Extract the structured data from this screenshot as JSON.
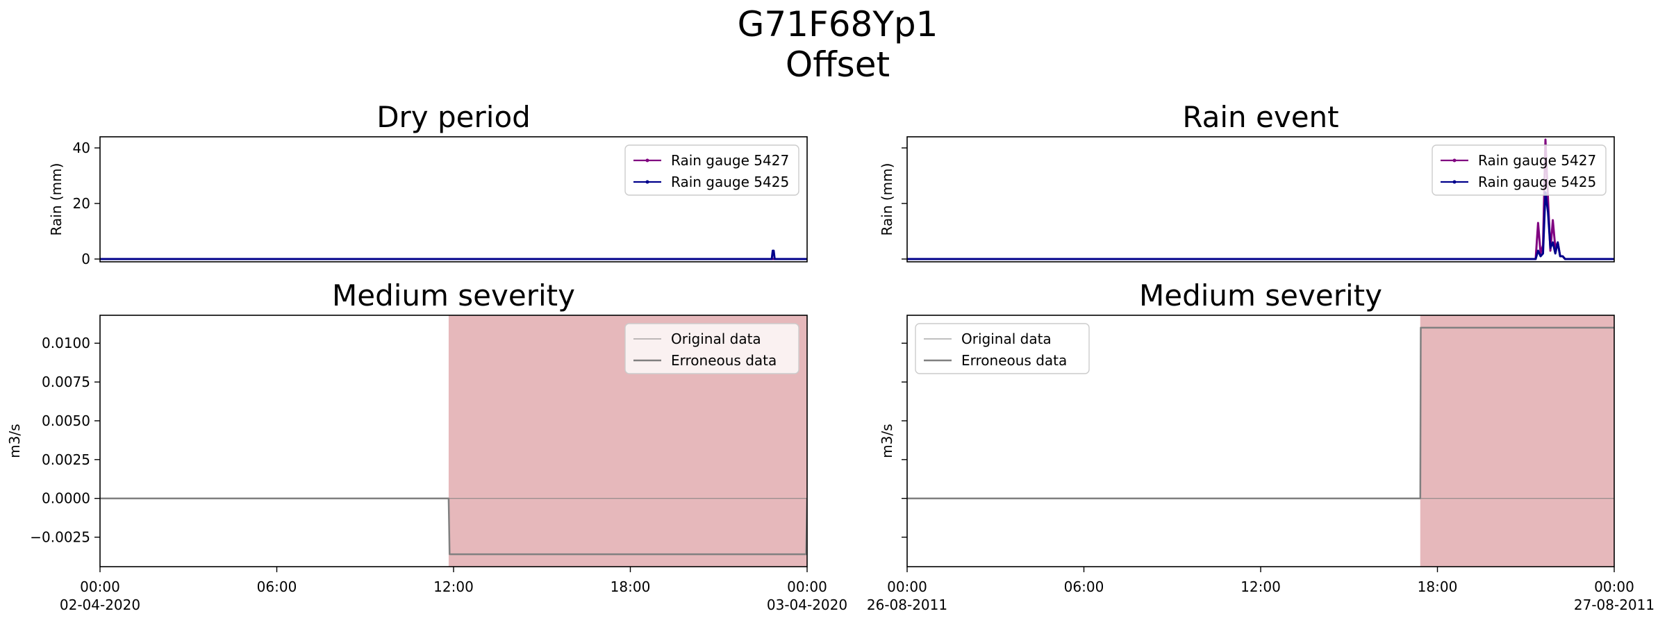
{
  "figure": {
    "title_line1": "G71F68Yp1",
    "title_line2": "Offset"
  },
  "chart_data": [
    {
      "id": "dry-rain",
      "type": "line",
      "title": "Dry period",
      "xlabel": "",
      "ylabel": "Rain (mm)",
      "xlim": [
        "2020-04-02 00:00",
        "2020-04-03 00:00"
      ],
      "ylim": [
        -1,
        44
      ],
      "yticks": [
        0,
        20,
        40
      ],
      "ytick_labels": [
        "0",
        "20",
        "40"
      ],
      "xticks": [],
      "legend": {
        "placement": "upper-right",
        "entries": [
          "Rain gauge 5427",
          "Rain gauge 5425"
        ]
      },
      "series": [
        {
          "name": "Rain gauge 5427",
          "color": "#800080",
          "x": [
            "2020-04-02 00:00",
            "2020-04-03 00:00"
          ],
          "y": [
            0,
            0
          ]
        },
        {
          "name": "Rain gauge 5425",
          "color": "#00008b",
          "x": [
            "2020-04-02 00:00",
            "2020-04-02 22:48",
            "2020-04-02 22:50",
            "2020-04-02 22:52",
            "2020-04-02 22:54",
            "2020-04-03 00:00"
          ],
          "y": [
            0,
            0,
            3,
            3,
            0,
            0
          ]
        }
      ]
    },
    {
      "id": "event-rain",
      "type": "line",
      "title": "Rain event",
      "xlabel": "",
      "ylabel": "Rain (mm)",
      "xlim": [
        "2011-08-26 00:00",
        "2011-08-27 00:00"
      ],
      "ylim": [
        -1,
        44
      ],
      "yticks": [
        0,
        20,
        40
      ],
      "ytick_labels": [
        "",
        "",
        ""
      ],
      "xticks": [],
      "legend": {
        "placement": "upper-right",
        "entries": [
          "Rain gauge 5427",
          "Rain gauge 5425"
        ]
      },
      "series": [
        {
          "name": "Rain gauge 5427",
          "color": "#800080",
          "x": [
            "2011-08-26 00:00",
            "2011-08-26 21:20",
            "2011-08-26 21:25",
            "2011-08-26 21:30",
            "2011-08-26 21:35",
            "2011-08-26 21:40",
            "2011-08-26 21:45",
            "2011-08-26 21:50",
            "2011-08-26 21:55",
            "2011-08-26 22:00",
            "2011-08-26 22:05",
            "2011-08-26 22:10",
            "2011-08-26 22:15",
            "2011-08-26 22:20",
            "2011-08-27 00:00"
          ],
          "y": [
            0,
            0,
            13,
            2,
            5,
            43,
            22,
            3,
            14,
            4,
            6,
            1,
            1,
            0,
            0
          ]
        },
        {
          "name": "Rain gauge 5425",
          "color": "#00008b",
          "x": [
            "2011-08-26 00:00",
            "2011-08-26 21:20",
            "2011-08-26 21:25",
            "2011-08-26 21:30",
            "2011-08-26 21:35",
            "2011-08-26 21:40",
            "2011-08-26 21:45",
            "2011-08-26 21:50",
            "2011-08-26 21:55",
            "2011-08-26 22:00",
            "2011-08-26 22:05",
            "2011-08-26 22:10",
            "2011-08-26 22:15",
            "2011-08-26 22:20",
            "2011-08-27 00:00"
          ],
          "y": [
            0,
            0,
            3,
            1,
            2,
            24,
            17,
            4,
            6,
            2,
            6,
            1,
            1,
            0,
            0
          ]
        }
      ]
    },
    {
      "id": "dry-flow",
      "type": "line",
      "title": "Medium severity",
      "xlabel": "",
      "ylabel": "m3/s",
      "xlim": [
        "2020-04-02 00:00",
        "2020-04-03 00:00"
      ],
      "ylim": [
        -0.0044,
        0.0118
      ],
      "yticks": [
        -0.0025,
        0,
        0.0025,
        0.005,
        0.0075,
        0.01
      ],
      "ytick_labels": [
        "−0.0025",
        "0.0000",
        "0.0025",
        "0.0050",
        "0.0075",
        "0.0100"
      ],
      "xticks": [
        "2020-04-02 00:00",
        "2020-04-02 06:00",
        "2020-04-02 12:00",
        "2020-04-02 18:00",
        "2020-04-03 00:00"
      ],
      "xtick_labels": [
        [
          "00:00",
          "02-04-2020"
        ],
        [
          "06:00",
          ""
        ],
        [
          "12:00",
          ""
        ],
        [
          "18:00",
          ""
        ],
        [
          "00:00",
          "03-04-2020"
        ]
      ],
      "shaded_region": {
        "from": "2020-04-02 11:50",
        "to": "2020-04-03 00:00",
        "color": "#e6b8bb"
      },
      "legend": {
        "placement": "upper-right",
        "entries": [
          "Original data",
          "Erroneous data"
        ]
      },
      "series": [
        {
          "name": "Original data",
          "color": "#808080",
          "width": 1,
          "x": [
            "2020-04-02 00:00",
            "2020-04-03 00:00"
          ],
          "y": [
            0,
            0
          ]
        },
        {
          "name": "Erroneous data",
          "color": "#808080",
          "width": 2.5,
          "x": [
            "2020-04-02 00:00",
            "2020-04-02 11:50",
            "2020-04-02 11:52",
            "2020-04-02 23:58",
            "2020-04-03 00:00"
          ],
          "y": [
            0,
            0,
            -0.0036,
            -0.0036,
            0
          ]
        }
      ]
    },
    {
      "id": "event-flow",
      "type": "line",
      "title": "Medium severity",
      "xlabel": "",
      "ylabel": "m3/s",
      "xlim": [
        "2011-08-26 00:00",
        "2011-08-27 00:00"
      ],
      "ylim": [
        -0.0044,
        0.0118
      ],
      "yticks": [
        -0.0025,
        0,
        0.0025,
        0.005,
        0.0075,
        0.01
      ],
      "ytick_labels": [
        "",
        "",
        "",
        "",
        "",
        ""
      ],
      "xticks": [
        "2011-08-26 00:00",
        "2011-08-26 06:00",
        "2011-08-26 12:00",
        "2011-08-26 18:00",
        "2011-08-27 00:00"
      ],
      "xtick_labels": [
        [
          "00:00",
          "26-08-2011"
        ],
        [
          "06:00",
          ""
        ],
        [
          "12:00",
          ""
        ],
        [
          "18:00",
          ""
        ],
        [
          "00:00",
          "27-08-2011"
        ]
      ],
      "shaded_region": {
        "from": "2011-08-26 17:25",
        "to": "2011-08-27 00:00",
        "color": "#e6b8bb"
      },
      "legend": {
        "placement": "upper-left",
        "entries": [
          "Original data",
          "Erroneous data"
        ]
      },
      "series": [
        {
          "name": "Original data",
          "color": "#808080",
          "width": 1,
          "x": [
            "2011-08-26 00:00",
            "2011-08-27 00:00"
          ],
          "y": [
            0,
            0
          ]
        },
        {
          "name": "Erroneous data",
          "color": "#808080",
          "width": 2.5,
          "x": [
            "2011-08-26 00:00",
            "2011-08-26 17:25",
            "2011-08-26 17:26",
            "2011-08-27 00:00"
          ],
          "y": [
            0,
            0,
            0.011,
            0.011
          ]
        }
      ]
    }
  ]
}
